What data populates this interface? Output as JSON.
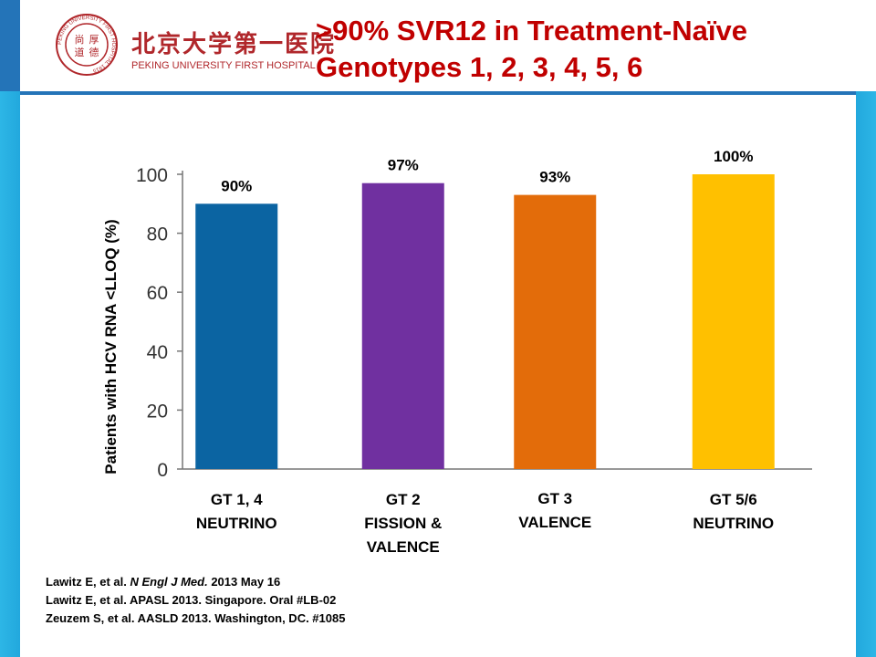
{
  "header": {
    "logo": {
      "cn_text": "北京大学第一医院",
      "en_text": "PEKING UNIVERSITY FIRST HOSPITAL",
      "seal_chars": [
        "尚",
        "厚",
        "道",
        "德"
      ],
      "seal_ring_text": "PEKING UNIVERSITY FIRST HOSPITAL 1915",
      "brand_color": "#b0272b"
    },
    "title_line1": ">90% SVR12 in Treatment-Naïve",
    "title_line2": "Genotypes 1, 2, 3, 4, 5, 6"
  },
  "chart_data": {
    "type": "bar",
    "ylabel": "Patients with HCV RNA <LLOQ (%)",
    "ylim": [
      0,
      100
    ],
    "yticks": [
      "0",
      "20",
      "40",
      "60",
      "80",
      "100"
    ],
    "grid": false,
    "categories": [
      [
        "GT 1, 4",
        "NEUTRINO"
      ],
      [
        "GT 2",
        "FISSION &",
        "VALENCE"
      ],
      [
        "GT 3",
        "VALENCE"
      ],
      [
        "GT 5/6",
        "NEUTRINO"
      ]
    ],
    "values": [
      90,
      97,
      93,
      100
    ],
    "data_labels": [
      "90%",
      "97%",
      "93%",
      "100%"
    ],
    "colors": [
      "#0b64a2",
      "#7030a0",
      "#e36c0a",
      "#ffc000"
    ]
  },
  "references": [
    {
      "pre": "Lawitz E, et al. ",
      "ital": "N Engl J Med.",
      "post": " 2013 May 16"
    },
    {
      "pre": "Lawitz E, et al. APASL 2013. Singapore. Oral #LB-02",
      "ital": "",
      "post": ""
    },
    {
      "pre": "Zeuzem S, et al. AASLD 2013. Washington, DC. #1085",
      "ital": "",
      "post": ""
    }
  ]
}
